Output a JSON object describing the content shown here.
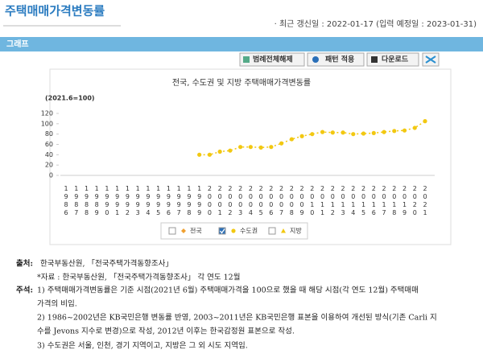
{
  "header": {
    "title": "주택매매가격변동률",
    "updated": "· 최근 갱신일 : 2022-01-17 (입력 예정일 : 2023-01-31)"
  },
  "section": "그래프",
  "buttons": [
    "범례전체해제",
    "패턴 적용",
    "다운로드"
  ],
  "chart_data": {
    "type": "line",
    "title": "전국, 수도권 및 지방 주택매매가격변동률",
    "unit": "(2021.6=100)",
    "categories": [
      "1986",
      "1987",
      "1988",
      "1989",
      "1990",
      "1991",
      "1992",
      "1993",
      "1994",
      "1995",
      "1996",
      "1997",
      "1998",
      "1999",
      "2000",
      "2001",
      "2002",
      "2003",
      "2004",
      "2005",
      "2006",
      "2007",
      "2008",
      "2009",
      "2010",
      "2011",
      "2012",
      "2013",
      "2014",
      "2015",
      "2016",
      "2017",
      "2018",
      "2019",
      "2020",
      "2021"
    ],
    "series": [
      {
        "color": "#f2c811",
        "values": [
          null,
          null,
          null,
          null,
          null,
          null,
          null,
          null,
          null,
          null,
          null,
          null,
          null,
          40,
          40,
          46,
          48,
          55,
          55,
          54,
          55,
          62,
          70,
          76,
          80,
          84,
          83,
          83,
          80,
          81,
          82,
          84,
          86,
          87,
          92,
          105
        ]
      }
    ],
    "legend": [
      {
        "name": "전국",
        "color": "#f0a030",
        "marker": "diamond",
        "checked": false
      },
      {
        "name": "수도권",
        "color": "#f2c811",
        "marker": "circle",
        "checked": true
      },
      {
        "name": "지방",
        "color": "#f2c811",
        "marker": "triangle",
        "checked": false
      }
    ],
    "ylim": [
      0,
      120
    ],
    "yticks": [
      0,
      20,
      40,
      60,
      80,
      100,
      120
    ],
    "grid": false
  },
  "footer": {
    "source_label": "출처:",
    "source": "한국부동산원, 「전국주택가격동향조사」",
    "data": "*자료 : 한국부동산원, 「전국주택가격동향조사」 각 연도 12월",
    "notes_label": "주석:",
    "notes": [
      "1) 주택매매가격변동률은 기준 시점(2021년 6월) 주택매매가격을 100으로 했을 때 해당 시점(각 연도 12월) 주택매매",
      "가격의 비임.",
      "2) 1986~2002년은 KB국민은행 변동률 반영, 2003~2011년은 KB국민은행 표본을 이용하여 개선된 방식(기존 Carli 지",
      "수를 Jevons 지수로 변경)으로 작성, 2012년 이후는 한국감정원 표본으로 작성.",
      "3) 수도권은 서울, 인천, 경기 지역이고, 지방은 그 외 시도 지역임."
    ]
  }
}
